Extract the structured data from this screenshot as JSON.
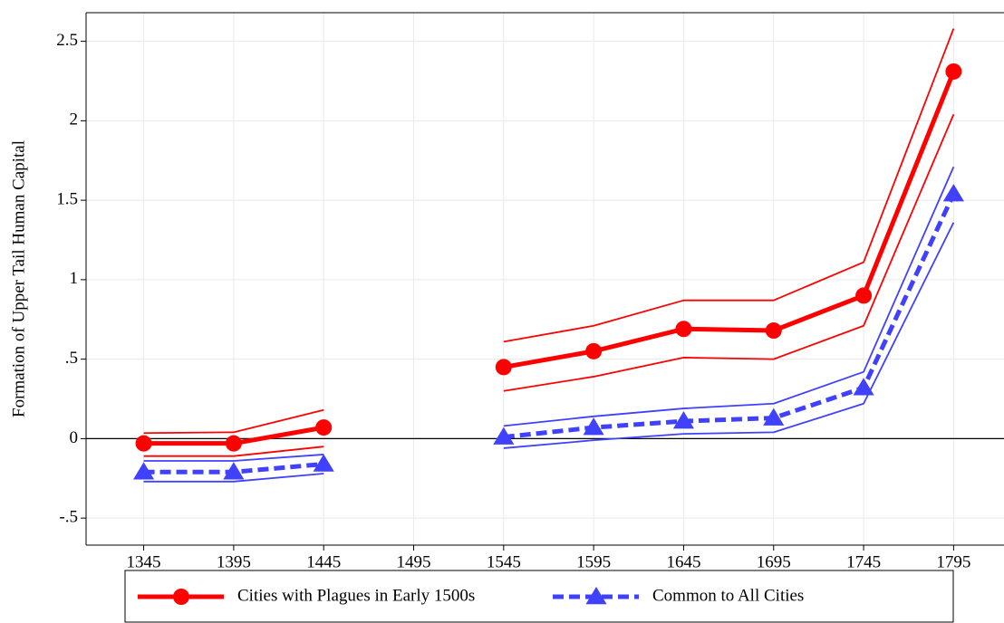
{
  "chart_data": {
    "type": "line",
    "y_label": "Formation of Upper Tail Human Capital",
    "x": [
      1345,
      1395,
      1445,
      1495,
      1545,
      1595,
      1645,
      1695,
      1745,
      1795
    ],
    "xlim": [
      1313,
      1823
    ],
    "xticks": [
      1345,
      1395,
      1445,
      1495,
      1545,
      1595,
      1645,
      1695,
      1745,
      1795
    ],
    "ylim": [
      -0.67,
      2.68
    ],
    "yticks": [
      {
        "value": -0.5,
        "label": "-.5"
      },
      0,
      {
        "value": 0.5,
        "label": ".5"
      },
      1,
      1.5,
      2,
      2.5
    ],
    "grid": true,
    "legend": "bottom",
    "series": [
      {
        "name": "Cities with Plagues in Early 1500s",
        "color": "#ff0000",
        "marker": "circle",
        "dashed": false,
        "values": [
          -0.03,
          -0.03,
          0.07,
          null,
          0.45,
          0.55,
          0.69,
          0.68,
          0.9,
          2.31
        ],
        "ci_upper": [
          0.035,
          0.04,
          0.18,
          null,
          0.61,
          0.71,
          0.87,
          0.87,
          1.11,
          2.58
        ],
        "ci_lower": [
          -0.11,
          -0.11,
          -0.05,
          null,
          0.3,
          0.39,
          0.51,
          0.5,
          0.71,
          2.04
        ]
      },
      {
        "name": "Common to All Cities",
        "color": "#4040ff",
        "marker": "triangle",
        "dashed": true,
        "values": [
          -0.21,
          -0.21,
          -0.16,
          null,
          0.01,
          0.07,
          0.11,
          0.13,
          0.32,
          1.54
        ],
        "ci_upper": [
          -0.14,
          -0.14,
          -0.1,
          null,
          0.08,
          0.14,
          0.19,
          0.22,
          0.42,
          1.71
        ],
        "ci_lower": [
          -0.27,
          -0.27,
          -0.22,
          null,
          -0.06,
          -0.01,
          0.03,
          0.04,
          0.22,
          1.36
        ]
      }
    ]
  }
}
